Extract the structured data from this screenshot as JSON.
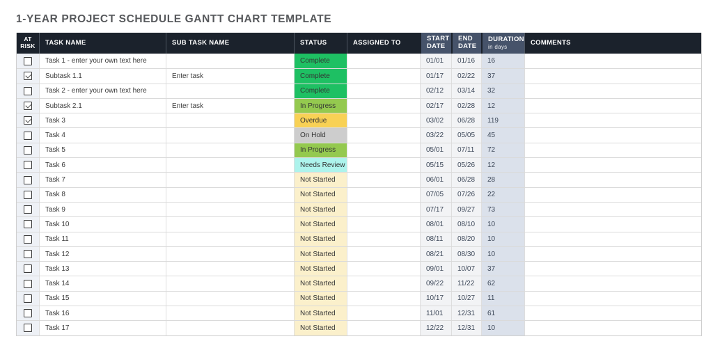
{
  "title": "1-YEAR PROJECT SCHEDULE GANTT CHART TEMPLATE",
  "status_colors": {
    "Complete": "#1ec063",
    "In Progress": "#94c94f",
    "Overdue": "#f8d155",
    "On Hold": "#cdcdcd",
    "Needs Review": "#adf3ec",
    "Not Started": "#fbf0cb"
  },
  "table": {
    "columns": [
      {
        "label": "AT RISK"
      },
      {
        "label": "TASK NAME"
      },
      {
        "label": "SUB TASK NAME"
      },
      {
        "label": "STATUS"
      },
      {
        "label": "ASSIGNED TO"
      },
      {
        "label": "START DATE"
      },
      {
        "label": "END DATE"
      },
      {
        "label": "DURATION",
        "sublabel": "in days"
      },
      {
        "label": "COMMENTS"
      }
    ],
    "rows": [
      {
        "at_risk": false,
        "task_name": "Task 1 - enter your own text here",
        "sub_task_name": "",
        "status": "Complete",
        "assigned_to": "",
        "start_date": "01/01",
        "end_date": "01/16",
        "duration": "16",
        "comments": ""
      },
      {
        "at_risk": true,
        "task_name": "Subtask 1.1",
        "sub_task_name": "Enter task",
        "status": "Complete",
        "assigned_to": "",
        "start_date": "01/17",
        "end_date": "02/22",
        "duration": "37",
        "comments": ""
      },
      {
        "at_risk": false,
        "task_name": "Task 2 - enter your own text here",
        "sub_task_name": "",
        "status": "Complete",
        "assigned_to": "",
        "start_date": "02/12",
        "end_date": "03/14",
        "duration": "32",
        "comments": ""
      },
      {
        "at_risk": true,
        "task_name": "Subtask 2.1",
        "sub_task_name": "Enter task",
        "status": "In Progress",
        "assigned_to": "",
        "start_date": "02/17",
        "end_date": "02/28",
        "duration": "12",
        "comments": ""
      },
      {
        "at_risk": true,
        "task_name": "Task 3",
        "sub_task_name": "",
        "status": "Overdue",
        "assigned_to": "",
        "start_date": "03/02",
        "end_date": "06/28",
        "duration": "119",
        "comments": ""
      },
      {
        "at_risk": false,
        "task_name": "Task 4",
        "sub_task_name": "",
        "status": "On Hold",
        "assigned_to": "",
        "start_date": "03/22",
        "end_date": "05/05",
        "duration": "45",
        "comments": ""
      },
      {
        "at_risk": false,
        "task_name": "Task 5",
        "sub_task_name": "",
        "status": "In Progress",
        "assigned_to": "",
        "start_date": "05/01",
        "end_date": "07/11",
        "duration": "72",
        "comments": ""
      },
      {
        "at_risk": false,
        "task_name": "Task 6",
        "sub_task_name": "",
        "status": "Needs Review",
        "assigned_to": "",
        "start_date": "05/15",
        "end_date": "05/26",
        "duration": "12",
        "comments": ""
      },
      {
        "at_risk": false,
        "task_name": "Task 7",
        "sub_task_name": "",
        "status": "Not Started",
        "assigned_to": "",
        "start_date": "06/01",
        "end_date": "06/28",
        "duration": "28",
        "comments": ""
      },
      {
        "at_risk": false,
        "task_name": "Task 8",
        "sub_task_name": "",
        "status": "Not Started",
        "assigned_to": "",
        "start_date": "07/05",
        "end_date": "07/26",
        "duration": "22",
        "comments": ""
      },
      {
        "at_risk": false,
        "task_name": "Task 9",
        "sub_task_name": "",
        "status": "Not Started",
        "assigned_to": "",
        "start_date": "07/17",
        "end_date": "09/27",
        "duration": "73",
        "comments": ""
      },
      {
        "at_risk": false,
        "task_name": "Task 10",
        "sub_task_name": "",
        "status": "Not Started",
        "assigned_to": "",
        "start_date": "08/01",
        "end_date": "08/10",
        "duration": "10",
        "comments": ""
      },
      {
        "at_risk": false,
        "task_name": "Task 11",
        "sub_task_name": "",
        "status": "Not Started",
        "assigned_to": "",
        "start_date": "08/11",
        "end_date": "08/20",
        "duration": "10",
        "comments": ""
      },
      {
        "at_risk": false,
        "task_name": "Task 12",
        "sub_task_name": "",
        "status": "Not Started",
        "assigned_to": "",
        "start_date": "08/21",
        "end_date": "08/30",
        "duration": "10",
        "comments": ""
      },
      {
        "at_risk": false,
        "task_name": "Task 13",
        "sub_task_name": "",
        "status": "Not Started",
        "assigned_to": "",
        "start_date": "09/01",
        "end_date": "10/07",
        "duration": "37",
        "comments": ""
      },
      {
        "at_risk": false,
        "task_name": "Task 14",
        "sub_task_name": "",
        "status": "Not Started",
        "assigned_to": "",
        "start_date": "09/22",
        "end_date": "11/22",
        "duration": "62",
        "comments": ""
      },
      {
        "at_risk": false,
        "task_name": "Task 15",
        "sub_task_name": "",
        "status": "Not Started",
        "assigned_to": "",
        "start_date": "10/17",
        "end_date": "10/27",
        "duration": "11",
        "comments": ""
      },
      {
        "at_risk": false,
        "task_name": "Task 16",
        "sub_task_name": "",
        "status": "Not Started",
        "assigned_to": "",
        "start_date": "11/01",
        "end_date": "12/31",
        "duration": "61",
        "comments": ""
      },
      {
        "at_risk": false,
        "task_name": "Task 17",
        "sub_task_name": "",
        "status": "Not Started",
        "assigned_to": "",
        "start_date": "12/22",
        "end_date": "12/31",
        "duration": "10",
        "comments": ""
      }
    ]
  }
}
